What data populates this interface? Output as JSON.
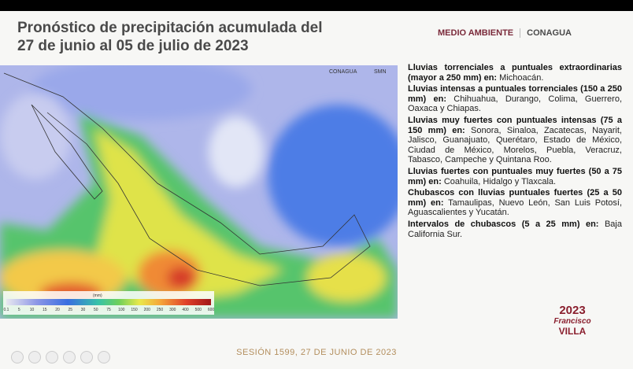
{
  "header": {
    "title_lines": [
      "Pronóstico de precipitación acumulada del",
      "27 de junio al 05 de julio de 2023"
    ],
    "logos": [
      "MEDIO AMBIENTE",
      "CONAGUA"
    ]
  },
  "map": {
    "logos": [
      "CONAGUA",
      "SMN"
    ],
    "legend_unit": "(mm)",
    "legend_labels": [
      "0.1",
      "5",
      "10",
      "15",
      "20",
      "25",
      "30",
      "50",
      "75",
      "100",
      "150",
      "200",
      "250",
      "300",
      "400",
      "500",
      "600"
    ]
  },
  "forecast": [
    {
      "lead": "Lluvias torrenciales a puntuales extraordinarias (mayor a 250 mm) en:",
      "states": "Michoacán."
    },
    {
      "lead": "Lluvias intensas a puntuales torrenciales (150 a 250 mm) en:",
      "states": "Chihuahua, Durango, Colima, Guerrero, Oaxaca y Chiapas."
    },
    {
      "lead": "Lluvias muy fuertes con puntuales intensas (75 a 150 mm) en:",
      "states": "Sonora, Sinaloa, Zacatecas, Nayarit, Jalisco, Guanajuato, Querétaro, Estado de México, Ciudad de México, Morelos, Puebla, Veracruz, Tabasco, Campeche y Quintana Roo."
    },
    {
      "lead": "Lluvias fuertes con puntuales muy fuertes (50 a 75 mm) en:",
      "states": "Coahuila, Hidalgo y Tlaxcala."
    },
    {
      "lead": "Chubascos con lluvias puntuales fuertes (25 a 50 mm) en:",
      "states": "Tamaulipas, Nuevo León, San Luis Potosí, Aguascalientes y Yucatán."
    },
    {
      "lead": "Intervalos de chubascos (5 a 25 mm) en:",
      "states": "Baja California Sur."
    }
  ],
  "emblem": {
    "year": "2023",
    "name_lines": [
      "Francisco",
      "VILLA"
    ]
  },
  "footer": "SESIÓN 1599, 27 DE JUNIO DE 2023"
}
